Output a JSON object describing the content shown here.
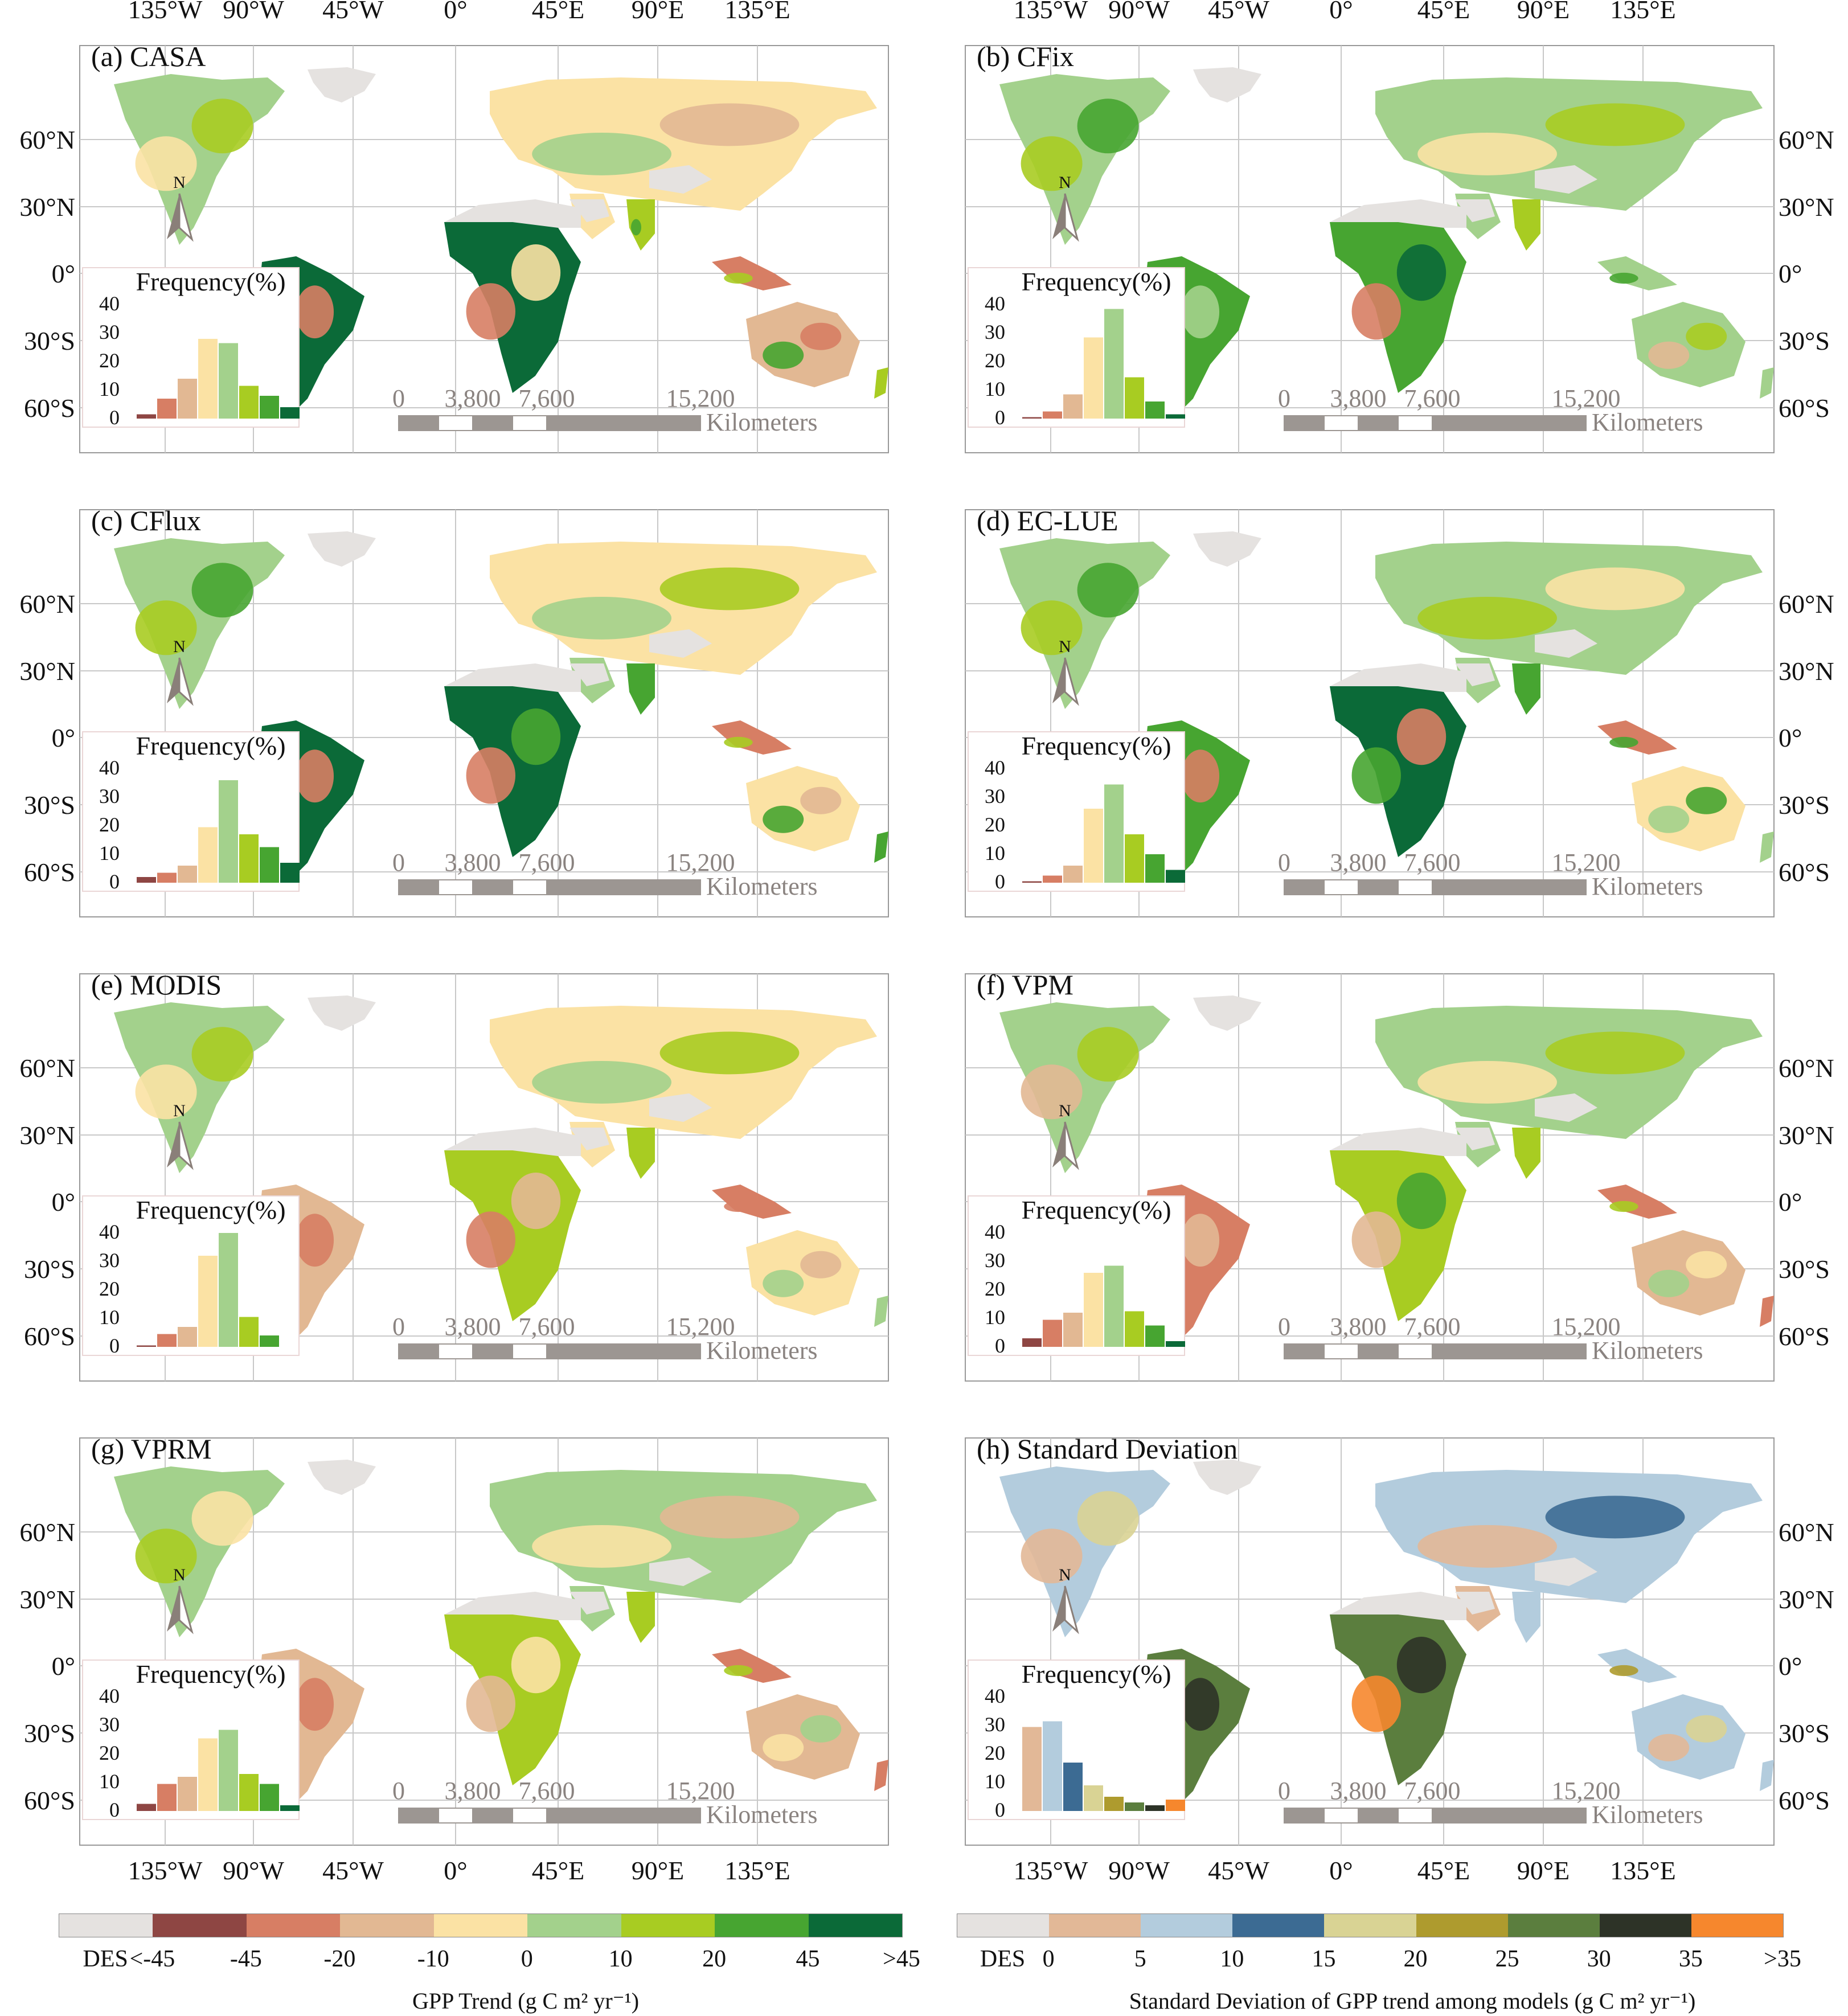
{
  "panels": [
    {
      "id": "a",
      "title": "(a) CASA",
      "hist": [
        1.5,
        7,
        14,
        28,
        26.5,
        11.5,
        8,
        4
      ],
      "palette": "trend",
      "style": "casa"
    },
    {
      "id": "b",
      "title": "(b) CFix",
      "hist": [
        0.5,
        2.5,
        8.5,
        28.5,
        38.5,
        14.5,
        6,
        1.5
      ],
      "palette": "trend",
      "style": "cfix"
    },
    {
      "id": "c",
      "title": "(c) CFlux",
      "hist": [
        2,
        3.5,
        6,
        19.5,
        36,
        17,
        12.5,
        7
      ],
      "palette": "trend",
      "style": "cflux"
    },
    {
      "id": "d",
      "title": "(d) EC-LUE",
      "hist": [
        0.5,
        2.5,
        6,
        26,
        34.5,
        17,
        10,
        4.5
      ],
      "palette": "trend",
      "style": "eclue"
    },
    {
      "id": "e",
      "title": "(e) MODIS",
      "hist": [
        0.5,
        4.5,
        7,
        32,
        40,
        10.5,
        4,
        0
      ],
      "palette": "trend",
      "style": "modis"
    },
    {
      "id": "f",
      "title": "(f) VPM",
      "hist": [
        3,
        9.5,
        12,
        26,
        28.5,
        12.5,
        7.5,
        2
      ],
      "palette": "trend",
      "style": "vpm"
    },
    {
      "id": "g",
      "title": "(g) VPRM",
      "hist": [
        2.5,
        9.5,
        12,
        25.5,
        28.5,
        13,
        9.5,
        2
      ],
      "palette": "trend",
      "style": "vprm"
    },
    {
      "id": "h",
      "title": "(h) Standard Deviation",
      "hist": [
        29.5,
        31.5,
        17,
        9,
        5,
        3,
        2,
        4
      ],
      "palette": "sd",
      "style": "sd"
    }
  ],
  "map_text": {
    "hist_title": "Frequency(%)",
    "hist_ticks": [
      "40",
      "30",
      "20",
      "10",
      "0"
    ],
    "lat_ticks": [
      "60°N",
      "30°N",
      "0°",
      "30°S",
      "60°S"
    ],
    "lon_ticks": [
      "135°W",
      "90°W",
      "45°W",
      "0°",
      "45°E",
      "90°E",
      "135°E"
    ],
    "north": "N",
    "scale_ticks": [
      "0",
      "3,800",
      "7,600",
      "15,200"
    ],
    "scale_unit": "Kilometers"
  },
  "colors": {
    "trend": [
      "#8e4643",
      "#d77e64",
      "#e2b893",
      "#fbe2a4",
      "#a3d18c",
      "#a8cc22",
      "#47a531",
      "#0b6a38"
    ],
    "sd": [
      "#e2b897",
      "#b3ccdd",
      "#3c6b93",
      "#d9d394",
      "#ae9b2e",
      "#5b7e3e",
      "#2d3327",
      "#f6872d"
    ],
    "des": "#e5e2e0",
    "ocean": "#ffffff"
  },
  "legends": [
    {
      "des_label": "DES",
      "ticks": [
        "<-45",
        "-45",
        "-20",
        "-10",
        "0",
        "10",
        "20",
        "45",
        ">45"
      ],
      "title": "GPP Trend (g C m² yr⁻¹)",
      "palette": "trend"
    },
    {
      "des_label": "DES",
      "ticks": [
        "0",
        "5",
        "10",
        "15",
        "20",
        "25",
        "30",
        "35",
        ">35"
      ],
      "title": "Standard Deviation of GPP trend among models (g C m² yr⁻¹)",
      "palette": "sd"
    }
  ]
}
